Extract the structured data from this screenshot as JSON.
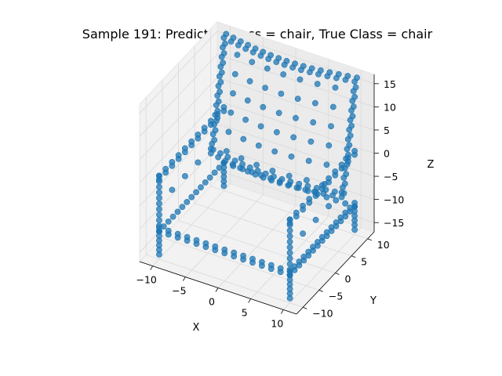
{
  "chart_data": {
    "type": "scatter3d",
    "title": "Sample 191: Predicted Class = chair, True Class = chair",
    "xlabel": "X",
    "ylabel": "Y",
    "zlabel": "Z",
    "xlim": [
      -12,
      12
    ],
    "ylim": [
      -12,
      12
    ],
    "zlim": [
      -17,
      17
    ],
    "xticks": [
      -10,
      -5,
      0,
      5,
      10
    ],
    "yticks": [
      -10,
      -5,
      0,
      5,
      10
    ],
    "zticks": [
      -15,
      -10,
      -5,
      0,
      5,
      10,
      15
    ],
    "grid": true,
    "marker_color": "#1f77b4",
    "pane_color": "#f2f2f2",
    "grid_color": "#d9d9d9",
    "series": [
      {
        "description": "point cloud of a chair",
        "components": [
          {
            "part": "seat-frame",
            "shape": "rectangle",
            "x": [
              -10,
              10
            ],
            "y": [
              -10,
              10
            ],
            "z": -11
          },
          {
            "part": "legs",
            "shape": "vertical-lines",
            "corners_xy": [
              [
                -10,
                -10
              ],
              [
                10,
                -10
              ],
              [
                10,
                10
              ],
              [
                -10,
                10
              ]
            ],
            "z": [
              -16,
              -11
            ]
          },
          {
            "part": "armrest-left",
            "shape": "rectangle-xz",
            "x": -10,
            "y": [
              -10,
              10
            ],
            "z": [
              -11,
              1
            ]
          },
          {
            "part": "armrest-right",
            "shape": "rectangle-xz",
            "x": 10,
            "y": [
              -10,
              10
            ],
            "z": [
              -11,
              1
            ]
          },
          {
            "part": "backrest",
            "shape": "rounded-panel",
            "x": [
              -10,
              10
            ],
            "y": [
              6,
              10
            ],
            "z": [
              -6,
              16
            ]
          }
        ]
      }
    ]
  }
}
